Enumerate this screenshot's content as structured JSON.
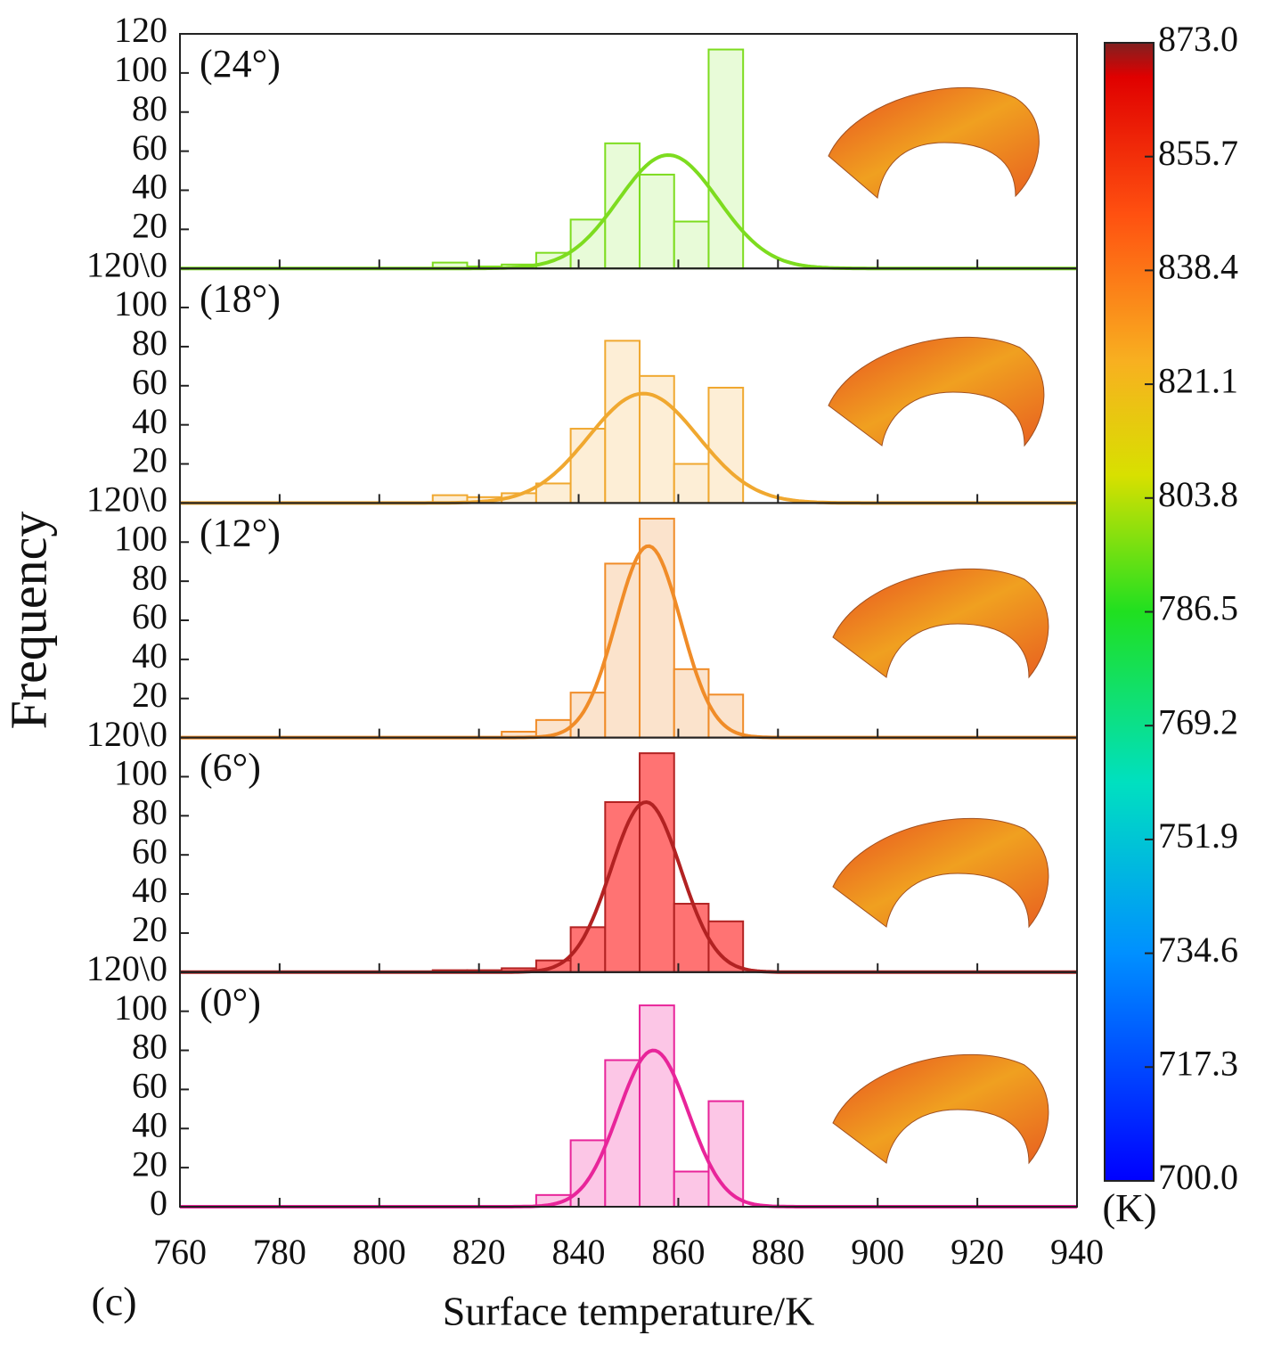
{
  "chart_data": [
    {
      "type": "histogram",
      "annotation": "(24°)",
      "color": "#7ddc1f",
      "fill": "#e8fbd8",
      "bins": [
        810.72,
        817.64,
        824.56,
        831.48,
        838.4,
        845.32,
        852.24,
        859.16,
        866.08,
        873.0
      ],
      "values": [
        3,
        1,
        2,
        8,
        25,
        64,
        48,
        24,
        112
      ],
      "fit": {
        "mean": 858,
        "sd": 10,
        "peak": 58
      },
      "xlim": [
        760,
        940
      ],
      "ylim": [
        0,
        120
      ],
      "yticks": [
        {
          "value": 0,
          "label": "120\\0"
        },
        20,
        40,
        60,
        80,
        100,
        120
      ]
    },
    {
      "type": "histogram",
      "annotation": "(18°)",
      "color": "#f0a830",
      "fill": "#fdeed6",
      "bins": [
        810.72,
        817.64,
        824.56,
        831.48,
        838.4,
        845.32,
        852.24,
        859.16,
        866.08,
        873.0
      ],
      "values": [
        4,
        3,
        5,
        10,
        38,
        83,
        65,
        20,
        59
      ],
      "fit": {
        "mean": 853,
        "sd": 11,
        "peak": 56
      },
      "xlim": [
        760,
        940
      ],
      "ylim": [
        0,
        120
      ],
      "yticks": [
        {
          "value": 0,
          "label": "120\\0"
        },
        20,
        40,
        60,
        80,
        100
      ]
    },
    {
      "type": "histogram",
      "annotation": "(12°)",
      "color": "#f08c28",
      "fill": "#fbe3cc",
      "bins": [
        810.72,
        817.64,
        824.56,
        831.48,
        838.4,
        845.32,
        852.24,
        859.16,
        866.08,
        873.0
      ],
      "values": [
        0,
        0,
        3,
        9,
        23,
        89,
        112,
        35,
        22
      ],
      "fit": {
        "mean": 854,
        "sd": 6.5,
        "peak": 98
      },
      "xlim": [
        760,
        940
      ],
      "ylim": [
        0,
        120
      ],
      "ylabel": "Frequency",
      "yticks": [
        {
          "value": 0,
          "label": "120\\0"
        },
        20,
        40,
        60,
        80,
        100
      ]
    },
    {
      "type": "histogram",
      "annotation": "(6°)",
      "color": "#b22222",
      "fill": "#ff7373",
      "bins": [
        810.72,
        817.64,
        824.56,
        831.48,
        838.4,
        845.32,
        852.24,
        859.16,
        866.08,
        873.0
      ],
      "values": [
        1,
        1,
        2,
        6,
        23,
        87,
        112,
        35,
        26
      ],
      "fit": {
        "mean": 853.5,
        "sd": 7,
        "peak": 87
      },
      "xlim": [
        760,
        940
      ],
      "ylim": [
        0,
        120
      ],
      "yticks": [
        {
          "value": 0,
          "label": "120\\0"
        },
        20,
        40,
        60,
        80,
        100
      ]
    },
    {
      "type": "histogram",
      "annotation": "(0°)",
      "color": "#e8259a",
      "fill": "#fcc6e6",
      "bins": [
        810.72,
        817.64,
        824.56,
        831.48,
        838.4,
        845.32,
        852.24,
        859.16,
        866.08,
        873.0
      ],
      "values": [
        0,
        0,
        0,
        6,
        34,
        75,
        103,
        18,
        54
      ],
      "fit": {
        "mean": 855,
        "sd": 7,
        "peak": 80
      },
      "xlim": [
        760,
        940
      ],
      "ylim": [
        0,
        120
      ],
      "yticks": [
        0,
        20,
        40,
        60,
        80,
        100
      ],
      "xticks": [
        760,
        780,
        800,
        820,
        840,
        860,
        880,
        900,
        920,
        940
      ],
      "xlabel": "Surface temperature/K"
    }
  ],
  "colorbar": {
    "label": "(K)",
    "range": [
      700,
      873
    ],
    "ticks": [
      {
        "value": 700,
        "label": "700.0"
      },
      717.3,
      734.6,
      751.9,
      769.2,
      786.5,
      803.8,
      821.1,
      838.4,
      855.7,
      {
        "value": 873,
        "label": "873.0"
      }
    ]
  },
  "panel_label": "(c)"
}
